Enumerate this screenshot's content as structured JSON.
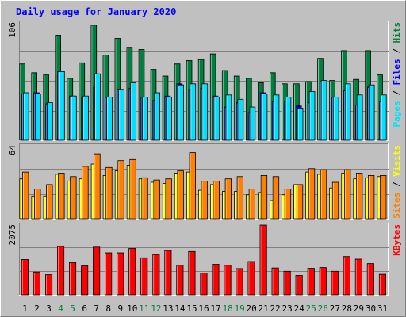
{
  "chart_data": {
    "type": "bar",
    "title": "Daily usage for January 2020",
    "days": [
      "1",
      "2",
      "3",
      "4",
      "5",
      "6",
      "7",
      "8",
      "9",
      "10",
      "11",
      "12",
      "13",
      "14",
      "15",
      "16",
      "17",
      "18",
      "19",
      "20",
      "21",
      "22",
      "23",
      "24",
      "25",
      "26",
      "27",
      "28",
      "29",
      "30",
      "31"
    ],
    "weekend_days": [
      "4",
      "5",
      "11",
      "12",
      "18",
      "19",
      "25",
      "26"
    ],
    "panels": [
      {
        "name": "hits-files-pages",
        "ymax": 106,
        "ymax_label": "106",
        "side_labels": [
          {
            "text": "Pages",
            "color": "#00e0ff"
          },
          {
            "text": "Files",
            "color": "#0000ff"
          },
          {
            "text": "Hits",
            "color": "#008040"
          }
        ],
        "series": [
          {
            "name": "Hits",
            "color": "#008040",
            "values": [
              69,
              61,
              59,
              95,
              56,
              70,
              104,
              77,
              92,
              84,
              82,
              64,
              58,
              69,
              72,
              73,
              78,
              63,
              58,
              56,
              52,
              61,
              51,
              51,
              53,
              74,
              54,
              81,
              55,
              81,
              59
            ]
          },
          {
            "name": "Files",
            "color": "#0000ff",
            "values": [
              42,
              43,
              33,
              62,
              40,
              39,
              48,
              39,
              46,
              47,
              39,
              36,
              40,
              51,
              46,
              47,
              40,
              30,
              34,
              25,
              43,
              35,
              35,
              31,
              34,
              53,
              39,
              45,
              32,
              48,
              35
            ]
          },
          {
            "name": "Pages",
            "color": "#00e0ff",
            "values": [
              43,
              42,
              34,
              62,
              40,
              40,
              60,
              39,
              46,
              52,
              39,
              43,
              39,
              50,
              51,
              51,
              39,
              41,
              37,
              30,
              42,
              41,
              39,
              29,
              44,
              54,
              39,
              51,
              41,
              50,
              41
            ]
          }
        ]
      },
      {
        "name": "visits-sites",
        "ymax": 64,
        "ymax_label": "64",
        "side_labels": [
          {
            "text": "Sites",
            "color": "#ff8000"
          },
          {
            "text": "Visits",
            "color": "#ffff00"
          }
        ],
        "series": [
          {
            "name": "Visits",
            "color": "#ffff00",
            "values": [
              35,
              20,
              20,
              39,
              33,
              35,
              48,
              38,
              42,
              47,
              35,
              32,
              31,
              40,
              41,
              25,
              30,
              24,
              24,
              21,
              23,
              16,
              21,
              30,
              41,
              39,
              27,
              40,
              35,
              36,
              37
            ]
          },
          {
            "name": "Sites",
            "color": "#ff8000",
            "values": [
              41,
              26,
              30,
              40,
              37,
              46,
              57,
              45,
              51,
              52,
              36,
              34,
              35,
              42,
              58,
              33,
              33,
              35,
              37,
              26,
              38,
              37,
              26,
              30,
              44,
              43,
              32,
              43,
              40,
              38,
              38
            ]
          }
        ]
      },
      {
        "name": "kbytes",
        "ymax": 2075,
        "ymax_label": "2075",
        "side_labels": [
          {
            "text": "KBytes",
            "color": "#ff0000"
          }
        ],
        "series": [
          {
            "name": "KBytes",
            "color": "#ff0000",
            "values": [
              1050,
              680,
              600,
              1440,
              960,
              860,
              1420,
              1250,
              1250,
              1380,
              1100,
              1200,
              1320,
              880,
              1290,
              650,
              910,
              880,
              780,
              990,
              2075,
              800,
              700,
              580,
              790,
              810,
              700,
              1140,
              1060,
              930,
              610
            ]
          }
        ]
      }
    ]
  }
}
